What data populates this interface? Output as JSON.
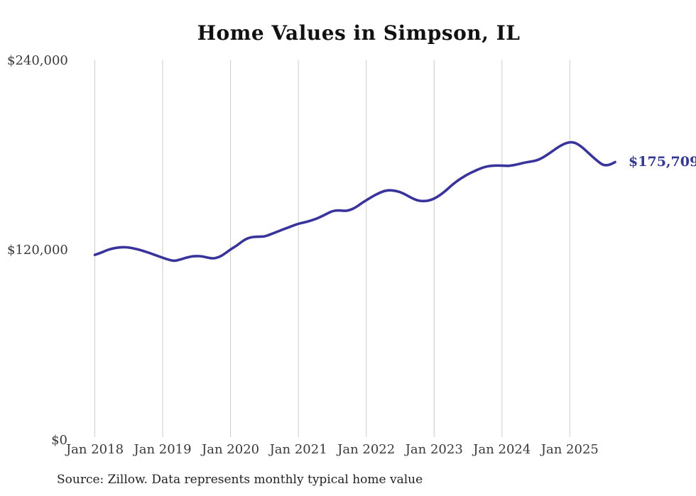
{
  "header": {
    "title": "Home Values in Simpson, IL"
  },
  "footer": {
    "source_note": "Source: Zillow. Data represents monthly typical home value"
  },
  "chart_data": {
    "type": "line",
    "title": "Home Values in Simpson, IL",
    "xlabel": "",
    "ylabel": "",
    "x_axis": {
      "tick_labels": [
        "Jan 2018",
        "Jan 2019",
        "Jan 2020",
        "Jan 2021",
        "Jan 2022",
        "Jan 2023",
        "Jan 2024",
        "Jan 2025"
      ],
      "start": "Jan 2018",
      "end": "Sep 2025",
      "frequency": "monthly"
    },
    "y_axis": {
      "tick_labels": [
        {
          "label": "$240,000",
          "value": 240000
        },
        {
          "label": "$120,000",
          "value": 120000
        },
        {
          "label": "$0",
          "value": 0
        }
      ],
      "range": [
        0,
        240000
      ]
    },
    "grid": "vertical-only",
    "legend": "none",
    "series": [
      {
        "name": "Typical home value",
        "unit": "USD",
        "start_month": "2018-01",
        "values": [
          117100,
          118300,
          119900,
          121000,
          121700,
          122000,
          121800,
          121100,
          120200,
          119100,
          117900,
          116600,
          115300,
          114100,
          113200,
          114000,
          115200,
          116100,
          116400,
          116200,
          115300,
          114800,
          115700,
          117900,
          120600,
          122700,
          125500,
          127700,
          128500,
          128600,
          128700,
          130000,
          131400,
          132800,
          134100,
          135500,
          136800,
          137600,
          138500,
          139700,
          141200,
          143000,
          144800,
          145300,
          144900,
          145200,
          146800,
          149300,
          151600,
          153800,
          155700,
          157300,
          158000,
          157700,
          156800,
          155100,
          153100,
          151500,
          151000,
          151300,
          152600,
          154700,
          157500,
          160700,
          163600,
          166000,
          168100,
          169800,
          171400,
          172700,
          173400,
          173600,
          173500,
          173300,
          173700,
          174500,
          175400,
          176000,
          176600,
          178100,
          180300,
          182800,
          185300,
          187300,
          188400,
          187900,
          185600,
          182500,
          179100,
          176000,
          173600,
          173900,
          175709
        ]
      }
    ],
    "end_label": "$175,709",
    "last_value": 175709,
    "colors": {
      "line": "#39349b",
      "end_label": "#32388f",
      "gridline": "#cccccc",
      "axis_text": "#3a3a3a",
      "title_text": "#111111",
      "source_text": "#222222"
    }
  }
}
